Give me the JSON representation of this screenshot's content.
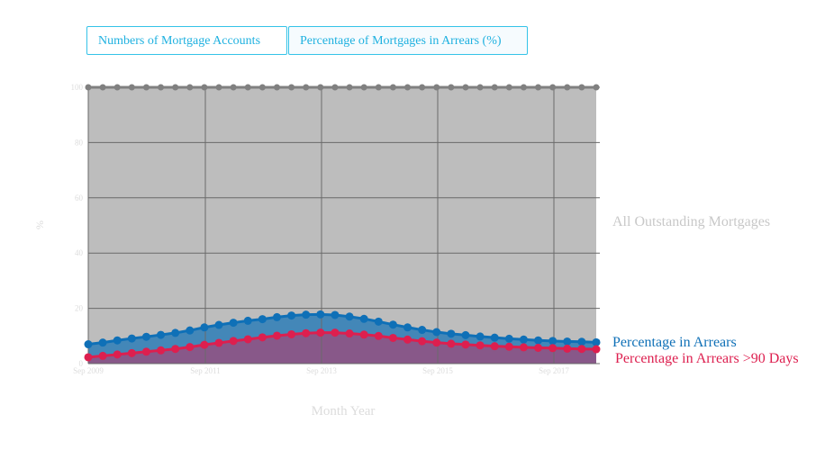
{
  "tabs": [
    {
      "label": "Numbers of Mortgage Accounts"
    },
    {
      "label": "Percentage of Mortgages in Arrears (%)"
    }
  ],
  "chart_data": {
    "type": "area",
    "xlabel": "Month Year",
    "ylabel": "%",
    "ylim": [
      0,
      100
    ],
    "y_ticks": [
      "0",
      "20",
      "40",
      "60",
      "80",
      "100"
    ],
    "x_tick_labels": [
      "Sep 2009",
      "Sep 2011",
      "Sep 2013",
      "Sep 2015",
      "Sep 2017"
    ],
    "grid": true,
    "point_count": 36,
    "series": [
      {
        "name": "All Outstanding Mortgages",
        "color": "#bdbdbd",
        "line_color": "#808080",
        "values": [
          100,
          100,
          100,
          100,
          100,
          100,
          100,
          100,
          100,
          100,
          100,
          100,
          100,
          100,
          100,
          100,
          100,
          100,
          100,
          100,
          100,
          100,
          100,
          100,
          100,
          100,
          100,
          100,
          100,
          100,
          100,
          100,
          100,
          100,
          100,
          100
        ]
      },
      {
        "name": "Percentage in Arrears",
        "color": "#0f70b7",
        "values": [
          7.0,
          7.6,
          8.4,
          9.1,
          9.7,
          10.4,
          11.1,
          12.0,
          13.1,
          14.0,
          14.8,
          15.5,
          16.1,
          16.8,
          17.4,
          17.7,
          17.8,
          17.6,
          17.0,
          16.2,
          15.2,
          14.1,
          13.1,
          12.2,
          11.4,
          10.8,
          10.3,
          9.8,
          9.4,
          9.0,
          8.7,
          8.4,
          8.2,
          8.0,
          7.9,
          7.7
        ]
      },
      {
        "name": "Percentage in Arrears >90 Days",
        "color": "#dd1f4f",
        "values": [
          2.3,
          2.8,
          3.3,
          3.8,
          4.3,
          4.8,
          5.3,
          6.0,
          6.8,
          7.5,
          8.2,
          8.8,
          9.5,
          10.1,
          10.6,
          11.0,
          11.2,
          11.2,
          10.9,
          10.5,
          10.0,
          9.3,
          8.7,
          8.1,
          7.6,
          7.2,
          6.9,
          6.6,
          6.3,
          6.1,
          5.9,
          5.7,
          5.6,
          5.4,
          5.3,
          5.2
        ]
      }
    ]
  }
}
